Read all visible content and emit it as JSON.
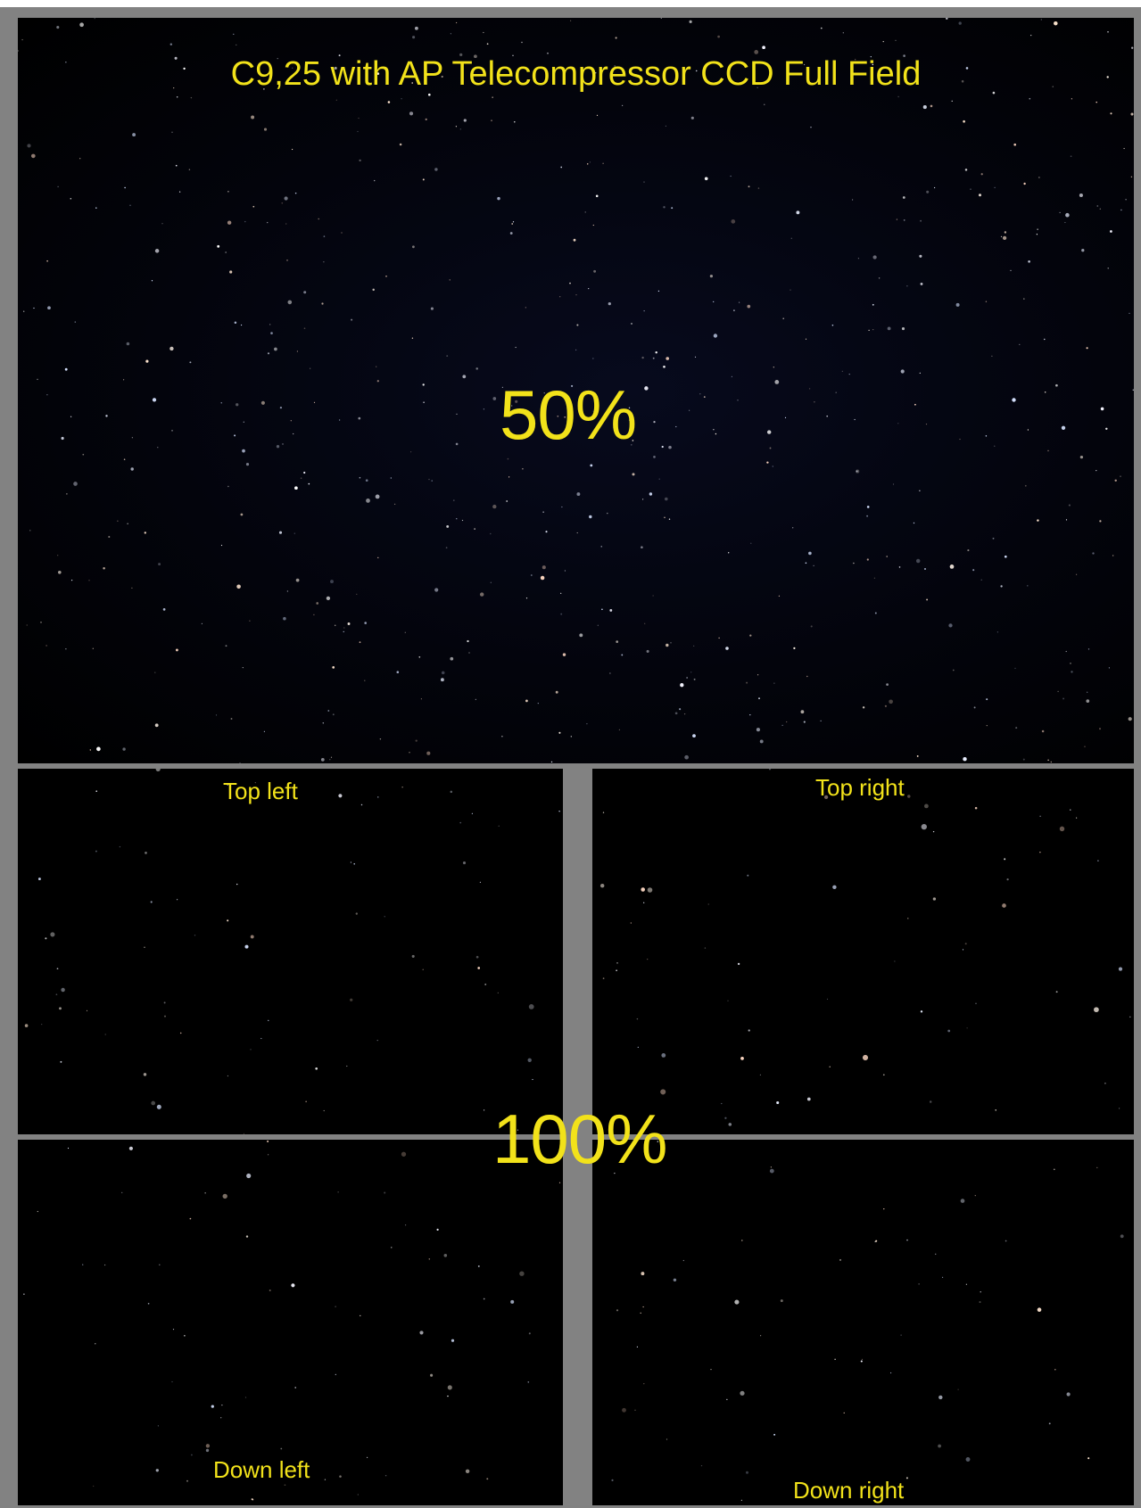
{
  "image": {
    "title": "C9,25 with AP Telecompressor CCD Full Field",
    "full_field_scale": "50%",
    "crop_scale": "100%",
    "panels": {
      "top_left": "Top left",
      "top_right": "Top right",
      "down_left": "Down left",
      "down_right": "Down right"
    }
  },
  "colors": {
    "frame": "#828282",
    "sky": "#000000",
    "label": "#f2e21a"
  }
}
